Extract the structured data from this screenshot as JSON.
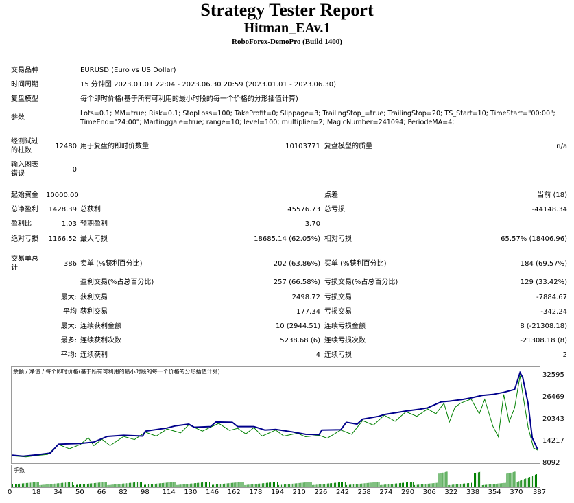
{
  "header": {
    "title": "Strategy Tester Report",
    "expert": "Hitman_EAv.1",
    "build": "RoboForex-DemoPro (Build 1400)"
  },
  "info": {
    "symbol_label": "交易品种",
    "symbol_value": "EURUSD (Euro vs US Dollar)",
    "period_label": "时间周期",
    "period_value": "15 分钟图 2023.01.01 22:04 - 2023.06.30 20:59 (2023.01.01 - 2023.06.30)",
    "model_label": "复盘模型",
    "model_value": "每个即时价格(基于所有可利用的最小时段的每一个价格的分形插值计算)",
    "params_label": "参数",
    "params_line1": "Lots=0.1; MM=true; Risk=0.1; StopLoss=100; TakeProfit=0; Slippage=3; TrailingStop_=true; TrailingStop=20; TS_Start=10; TimeStart=\"00:00\";",
    "params_line2": "TimeEnd=\"24:00\"; Martinggale=true; range=10; level=100; multiplier=2; MagicNumber=241094; PeriodeMA=4;"
  },
  "bars": {
    "label": "经测试过的柱数",
    "value": "12480",
    "ticks_label": "用于复盘的即时价数量",
    "ticks_value": "10103771",
    "quality_label": "复盘模型的质量",
    "quality_value": "n/a"
  },
  "mismatch": {
    "label": "输入图表错误",
    "value": "0"
  },
  "stats": {
    "deposit_label": "起始资金",
    "deposit_value": "10000.00",
    "spread_label": "点差",
    "spread_value": "当前 (18)",
    "net_label": "总净盈利",
    "net_value": "1428.39",
    "gross_profit_label": "总获利",
    "gross_profit_value": "45576.73",
    "gross_loss_label": "总亏损",
    "gross_loss_value": "-44148.34",
    "pf_label": "盈利比",
    "pf_value": "1.03",
    "payoff_label": "预期盈利",
    "payoff_value": "3.70",
    "abs_dd_label": "绝对亏损",
    "abs_dd_value": "1166.52",
    "max_dd_label": "最大亏损",
    "max_dd_value": "18685.14 (62.05%)",
    "rel_dd_label": "相对亏损",
    "rel_dd_value": "65.57% (18406.96)"
  },
  "trades": {
    "total_label": "交易单总计",
    "total_value": "386",
    "short_label": "卖单 (%获利百分比)",
    "short_value": "202 (63.86%)",
    "long_label": "买单 (%获利百分比)",
    "long_value": "184 (69.57%)",
    "profit_trades_label": "盈利交易(%占总百分比)",
    "profit_trades_value": "257 (66.58%)",
    "loss_trades_label": "亏损交易(%占总百分比)",
    "loss_trades_value": "129 (33.42%)",
    "max_label": "最大:",
    "largest_profit_label": "获利交易",
    "largest_profit_value": "2498.72",
    "largest_loss_label": "亏损交易",
    "largest_loss_value": "-7884.67",
    "avg_label": "平均",
    "avg_profit_label": "获利交易",
    "avg_profit_value": "177.34",
    "avg_loss_label": "亏损交易",
    "avg_loss_value": "-342.24",
    "max2_label": "最大:",
    "max_cons_wins_label": "连续获利金额",
    "max_cons_wins_value": "10 (2944.51)",
    "max_cons_losses_label": "连续亏损金额",
    "max_cons_losses_value": "8 (-21308.18)",
    "most_label": "最多:",
    "max_cons_profit_label": "连续获利次数",
    "max_cons_profit_value": "5238.68 (6)",
    "max_cons_loss_label": "连续亏损次数",
    "max_cons_loss_value": "-21308.18 (8)",
    "avg2_label": "平均:",
    "avg_cons_wins_label": "连续获利",
    "avg_cons_wins_value": "4",
    "avg_cons_losses_label": "连续亏损",
    "avg_cons_losses_value": "2"
  },
  "chart_data": {
    "type": "line",
    "title": "余额 / 净值 / 每个即时价格(基于所有可利用的最小时段的每一个价格的分形插值计算)",
    "xlabel": "",
    "ylabel": "",
    "x_ticks": [
      "0",
      "18",
      "34",
      "50",
      "66",
      "82",
      "98",
      "114",
      "130",
      "146",
      "162",
      "178",
      "194",
      "210",
      "226",
      "242",
      "258",
      "274",
      "290",
      "306",
      "322",
      "338",
      "354",
      "370",
      "387"
    ],
    "y_ticks": [
      "32595",
      "26469",
      "20343",
      "14217",
      "8092"
    ],
    "ylim": [
      8092,
      32595
    ],
    "xlim": [
      0,
      387
    ],
    "colors": {
      "balance": "#00008b",
      "equity": "#008000",
      "volume": "#008000"
    },
    "series": [
      {
        "name": "余额",
        "points": [
          [
            0,
            9600
          ],
          [
            8,
            9300
          ],
          [
            18,
            9700
          ],
          [
            28,
            10200
          ],
          [
            34,
            12700
          ],
          [
            50,
            12900
          ],
          [
            60,
            13300
          ],
          [
            70,
            14900
          ],
          [
            82,
            15200
          ],
          [
            96,
            15000
          ],
          [
            98,
            16400
          ],
          [
            114,
            17300
          ],
          [
            120,
            17900
          ],
          [
            130,
            18400
          ],
          [
            134,
            17500
          ],
          [
            146,
            17700
          ],
          [
            150,
            19000
          ],
          [
            162,
            18900
          ],
          [
            166,
            17700
          ],
          [
            178,
            17700
          ],
          [
            186,
            16700
          ],
          [
            194,
            16900
          ],
          [
            206,
            16200
          ],
          [
            216,
            15500
          ],
          [
            226,
            15400
          ],
          [
            228,
            16700
          ],
          [
            242,
            16800
          ],
          [
            246,
            18900
          ],
          [
            254,
            18400
          ],
          [
            258,
            19800
          ],
          [
            270,
            20600
          ],
          [
            274,
            21100
          ],
          [
            290,
            22100
          ],
          [
            300,
            22600
          ],
          [
            306,
            23000
          ],
          [
            316,
            24700
          ],
          [
            322,
            24900
          ],
          [
            332,
            25400
          ],
          [
            338,
            25800
          ],
          [
            346,
            26500
          ],
          [
            354,
            26800
          ],
          [
            362,
            27400
          ],
          [
            370,
            28200
          ],
          [
            374,
            33000
          ],
          [
            376,
            31600
          ],
          [
            380,
            24200
          ],
          [
            383,
            14500
          ],
          [
            387,
            11200
          ]
        ]
      },
      {
        "name": "净值",
        "points": [
          [
            0,
            9400
          ],
          [
            10,
            9100
          ],
          [
            18,
            9500
          ],
          [
            26,
            9800
          ],
          [
            34,
            12600
          ],
          [
            42,
            11400
          ],
          [
            50,
            12600
          ],
          [
            56,
            14500
          ],
          [
            60,
            12300
          ],
          [
            66,
            14100
          ],
          [
            72,
            12300
          ],
          [
            82,
            14900
          ],
          [
            90,
            14000
          ],
          [
            98,
            16100
          ],
          [
            106,
            15000
          ],
          [
            114,
            17000
          ],
          [
            124,
            15900
          ],
          [
            130,
            18200
          ],
          [
            140,
            16400
          ],
          [
            146,
            17500
          ],
          [
            152,
            18600
          ],
          [
            160,
            16600
          ],
          [
            166,
            17200
          ],
          [
            172,
            15600
          ],
          [
            178,
            17400
          ],
          [
            184,
            15000
          ],
          [
            194,
            16700
          ],
          [
            200,
            15000
          ],
          [
            210,
            15800
          ],
          [
            216,
            14800
          ],
          [
            226,
            15200
          ],
          [
            232,
            14400
          ],
          [
            242,
            16700
          ],
          [
            250,
            15500
          ],
          [
            258,
            19400
          ],
          [
            266,
            18100
          ],
          [
            274,
            20900
          ],
          [
            282,
            19200
          ],
          [
            290,
            21900
          ],
          [
            298,
            20600
          ],
          [
            306,
            22700
          ],
          [
            312,
            21300
          ],
          [
            318,
            24300
          ],
          [
            322,
            19000
          ],
          [
            326,
            23100
          ],
          [
            330,
            24300
          ],
          [
            338,
            25500
          ],
          [
            344,
            21300
          ],
          [
            348,
            25400
          ],
          [
            354,
            17800
          ],
          [
            358,
            14800
          ],
          [
            362,
            26800
          ],
          [
            366,
            19000
          ],
          [
            370,
            23000
          ],
          [
            374,
            32100
          ],
          [
            376,
            27000
          ],
          [
            380,
            17500
          ],
          [
            384,
            11600
          ],
          [
            387,
            11000
          ]
        ]
      }
    ],
    "volume_label": "手数"
  }
}
